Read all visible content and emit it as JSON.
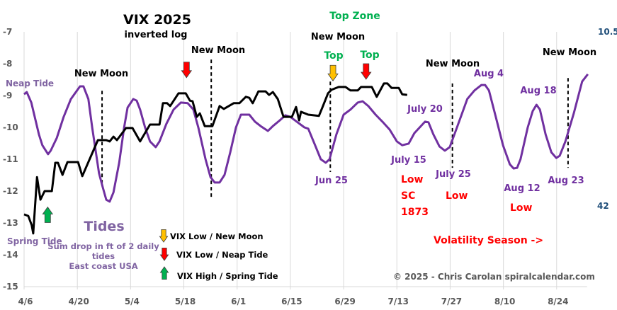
{
  "chart_data": {
    "type": "line",
    "title": "VIX 2025",
    "subtitle": "inverted log",
    "x_unit": "days since 4/6",
    "xlim": [
      0,
      148
    ],
    "ylim": [
      -15,
      -7
    ],
    "grid": "vertical",
    "x_ticks": [
      {
        "day": 0,
        "label": "4/6"
      },
      {
        "day": 14,
        "label": "4/20"
      },
      {
        "day": 28,
        "label": "5/4"
      },
      {
        "day": 42,
        "label": "5/18"
      },
      {
        "day": 56,
        "label": "6/1"
      },
      {
        "day": 70,
        "label": "6/15"
      },
      {
        "day": 84,
        "label": "6/29"
      },
      {
        "day": 98,
        "label": "7/13"
      },
      {
        "day": 112,
        "label": "7/27"
      },
      {
        "day": 126,
        "label": "8/10"
      },
      {
        "day": 140,
        "label": "8/24"
      }
    ],
    "y_ticks": [
      "-7",
      "-8",
      "-9",
      "-10",
      "-11",
      "-12",
      "-13",
      "-14",
      "-15"
    ],
    "y_tick_values": [
      -7,
      -8,
      -9,
      -10,
      -11,
      -12,
      -13,
      -14,
      -15
    ],
    "right_axis_labels": [
      {
        "value": -7,
        "label": "10.5"
      },
      {
        "value": -12.5,
        "label": "42"
      }
    ],
    "series": [
      {
        "name": "VIX",
        "color": "#000000",
        "points": [
          [
            0,
            -12.73
          ],
          [
            1.1,
            -12.78
          ],
          [
            2,
            -13.07
          ],
          [
            2.4,
            -13.33
          ],
          [
            3.4,
            -11.56
          ],
          [
            4.3,
            -12.27
          ],
          [
            5.4,
            -12.0
          ],
          [
            7.3,
            -12.0
          ],
          [
            8.2,
            -11.11
          ],
          [
            8.9,
            -11.11
          ],
          [
            10.1,
            -11.49
          ],
          [
            11.4,
            -11.09
          ],
          [
            14.2,
            -11.09
          ],
          [
            15.3,
            -11.53
          ],
          [
            19.4,
            -10.4
          ],
          [
            21.6,
            -10.4
          ],
          [
            22.5,
            -10.44
          ],
          [
            23.5,
            -10.29
          ],
          [
            24.4,
            -10.4
          ],
          [
            26.8,
            -10.02
          ],
          [
            28.5,
            -10.02
          ],
          [
            30.5,
            -10.44
          ],
          [
            33.1,
            -9.91
          ],
          [
            35.6,
            -9.91
          ],
          [
            36.5,
            -9.24
          ],
          [
            37.6,
            -9.24
          ],
          [
            38.4,
            -9.33
          ],
          [
            40.6,
            -8.93
          ],
          [
            42.5,
            -8.93
          ],
          [
            43.6,
            -9.16
          ],
          [
            44.3,
            -9.18
          ],
          [
            45.4,
            -9.67
          ],
          [
            46.2,
            -9.56
          ],
          [
            47.5,
            -9.96
          ],
          [
            49.5,
            -9.96
          ],
          [
            51.4,
            -9.33
          ],
          [
            52.5,
            -9.42
          ],
          [
            55.1,
            -9.24
          ],
          [
            56.6,
            -9.24
          ],
          [
            58.3,
            -9.04
          ],
          [
            59.2,
            -9.07
          ],
          [
            60.1,
            -9.24
          ],
          [
            61.6,
            -8.87
          ],
          [
            63.5,
            -8.87
          ],
          [
            64.4,
            -8.98
          ],
          [
            65.4,
            -8.89
          ],
          [
            66.7,
            -9.11
          ],
          [
            68.2,
            -9.67
          ],
          [
            70.4,
            -9.67
          ],
          [
            71.5,
            -9.36
          ],
          [
            72.3,
            -9.78
          ],
          [
            72.8,
            -9.51
          ],
          [
            74.7,
            -9.6
          ],
          [
            77.5,
            -9.64
          ],
          [
            78.4,
            -9.38
          ],
          [
            79.9,
            -8.93
          ],
          [
            80.8,
            -8.82
          ],
          [
            82.7,
            -8.73
          ],
          [
            84.5,
            -8.73
          ],
          [
            85.8,
            -8.84
          ],
          [
            87.7,
            -8.84
          ],
          [
            88.6,
            -8.73
          ],
          [
            91.4,
            -8.73
          ],
          [
            92.7,
            -9.04
          ],
          [
            94.6,
            -8.62
          ],
          [
            95.5,
            -8.62
          ],
          [
            96.6,
            -8.76
          ],
          [
            98.5,
            -8.76
          ],
          [
            99.4,
            -8.96
          ],
          [
            100.7,
            -8.98
          ]
        ]
      },
      {
        "name": "Tides",
        "color": "#7030A0",
        "points": [
          [
            0,
            -8.96
          ],
          [
            0.7,
            -8.89
          ],
          [
            1.9,
            -9.22
          ],
          [
            3.9,
            -10.22
          ],
          [
            4.8,
            -10.56
          ],
          [
            6.3,
            -10.84
          ],
          [
            7,
            -10.73
          ],
          [
            8.6,
            -10.33
          ],
          [
            10.4,
            -9.67
          ],
          [
            12.3,
            -9.11
          ],
          [
            14.7,
            -8.71
          ],
          [
            15.6,
            -8.71
          ],
          [
            16.9,
            -9.11
          ],
          [
            17.9,
            -10.0
          ],
          [
            19.7,
            -11.44
          ],
          [
            20.7,
            -11.89
          ],
          [
            21.6,
            -12.27
          ],
          [
            22.5,
            -12.33
          ],
          [
            23.5,
            -12.04
          ],
          [
            25,
            -11.11
          ],
          [
            26.3,
            -10.0
          ],
          [
            27.2,
            -9.38
          ],
          [
            28.7,
            -9.11
          ],
          [
            29.6,
            -9.16
          ],
          [
            30.5,
            -9.44
          ],
          [
            31.8,
            -10.0
          ],
          [
            33.1,
            -10.44
          ],
          [
            34.6,
            -10.62
          ],
          [
            35.6,
            -10.44
          ],
          [
            37.4,
            -9.89
          ],
          [
            39.3,
            -9.44
          ],
          [
            41.2,
            -9.22
          ],
          [
            43,
            -9.24
          ],
          [
            44.5,
            -9.44
          ],
          [
            45.8,
            -10.0
          ],
          [
            47.7,
            -11.0
          ],
          [
            49,
            -11.56
          ],
          [
            50.1,
            -11.73
          ],
          [
            51.4,
            -11.73
          ],
          [
            52.7,
            -11.49
          ],
          [
            54.2,
            -10.78
          ],
          [
            55.7,
            -10.0
          ],
          [
            57,
            -9.6
          ],
          [
            59.2,
            -9.6
          ],
          [
            60.7,
            -9.82
          ],
          [
            62.2,
            -9.96
          ],
          [
            64.1,
            -10.11
          ],
          [
            65.4,
            -9.96
          ],
          [
            67.2,
            -9.78
          ],
          [
            68.7,
            -9.62
          ],
          [
            70,
            -9.67
          ],
          [
            71.9,
            -9.84
          ],
          [
            73.7,
            -10.0
          ],
          [
            74.7,
            -10.04
          ],
          [
            76.5,
            -10.56
          ],
          [
            78,
            -11.0
          ],
          [
            79.3,
            -11.11
          ],
          [
            80.3,
            -11.0
          ],
          [
            82.1,
            -10.22
          ],
          [
            84,
            -9.6
          ],
          [
            85.8,
            -9.44
          ],
          [
            87.7,
            -9.22
          ],
          [
            89,
            -9.18
          ],
          [
            90.5,
            -9.33
          ],
          [
            92.4,
            -9.6
          ],
          [
            94.2,
            -9.82
          ],
          [
            96.1,
            -10.07
          ],
          [
            98,
            -10.44
          ],
          [
            99.4,
            -10.56
          ],
          [
            101.1,
            -10.51
          ],
          [
            102.6,
            -10.18
          ],
          [
            105.4,
            -9.82
          ],
          [
            106.3,
            -9.84
          ],
          [
            107.6,
            -10.22
          ],
          [
            109.2,
            -10.6
          ],
          [
            110.6,
            -10.73
          ],
          [
            111.9,
            -10.62
          ],
          [
            113.8,
            -10.0
          ],
          [
            116.5,
            -9.11
          ],
          [
            118.4,
            -8.84
          ],
          [
            120.2,
            -8.67
          ],
          [
            121.2,
            -8.67
          ],
          [
            122.2,
            -8.84
          ],
          [
            124,
            -9.67
          ],
          [
            125.9,
            -10.56
          ],
          [
            127.7,
            -11.16
          ],
          [
            128.7,
            -11.29
          ],
          [
            129.6,
            -11.27
          ],
          [
            130.5,
            -11.0
          ],
          [
            132.4,
            -10.0
          ],
          [
            133.7,
            -9.49
          ],
          [
            134.7,
            -9.29
          ],
          [
            135.6,
            -9.44
          ],
          [
            137.1,
            -10.22
          ],
          [
            138.6,
            -10.78
          ],
          [
            139.9,
            -10.96
          ],
          [
            140.8,
            -10.89
          ],
          [
            142.3,
            -10.44
          ],
          [
            144.5,
            -9.56
          ],
          [
            146.7,
            -8.56
          ],
          [
            148.2,
            -8.33
          ]
        ]
      }
    ],
    "new_moon_lines": [
      {
        "day": 20.5,
        "top": -8.85,
        "bottom": -11.75
      },
      {
        "day": 49.2,
        "top": -7.87,
        "bottom": -12.2
      },
      {
        "day": 80.5,
        "top": -8.56,
        "bottom": -11.4
      },
      {
        "day": 112.6,
        "top": -8.62,
        "bottom": -11.27
      },
      {
        "day": 143,
        "top": -8.45,
        "bottom": -11.27
      }
    ],
    "arrows": [
      {
        "day": 42.7,
        "value": -7.95,
        "direction": "down",
        "color": "#FF0000"
      },
      {
        "day": 81.2,
        "value": -8.05,
        "direction": "down",
        "color": "#FFC000"
      },
      {
        "day": 89.9,
        "value": -8.0,
        "direction": "down",
        "color": "#FF0000"
      },
      {
        "day": 6.2,
        "value": -12.5,
        "direction": "up",
        "color": "#00B050"
      }
    ],
    "annotations": {
      "neap_tide": "Neap Tide",
      "spring_tide": "Spring Tide",
      "tides_title": "Tides",
      "tides_desc_1": "Sum drop in ft of 2 daily",
      "tides_desc_2": "tides",
      "tides_desc_3": "East coast USA",
      "new_moon_1": "New Moon",
      "new_moon_2": "New Moon",
      "new_moon_3": "New Moon",
      "new_moon_4": "New Moon",
      "new_moon_5": "New Moon",
      "top_zone": "Top Zone",
      "top_1": "Top",
      "top_2": "Top",
      "jun25": "Jun 25",
      "july15": "July 15",
      "july20": "July 20",
      "july25": "July 25",
      "aug4": "Aug 4",
      "aug12": "Aug 12",
      "aug18": "Aug 18",
      "aug23": "Aug 23",
      "low_1": "Low",
      "sc": "SC",
      "sc_year": "1873",
      "low_2": "Low",
      "low_3": "Low",
      "volatility": "Volatility Season ->",
      "copyright": "©  2025 - Chris Carolan  spiralcalendar.com"
    },
    "legend": [
      {
        "label": "VIX Low / New Moon",
        "color": "#FFC000",
        "direction": "down"
      },
      {
        "label": "VIX Low / Neap Tide",
        "color": "#FF0000",
        "direction": "down"
      },
      {
        "label": "VIX High / Spring Tide",
        "color": "#00B050",
        "direction": "up"
      }
    ]
  }
}
